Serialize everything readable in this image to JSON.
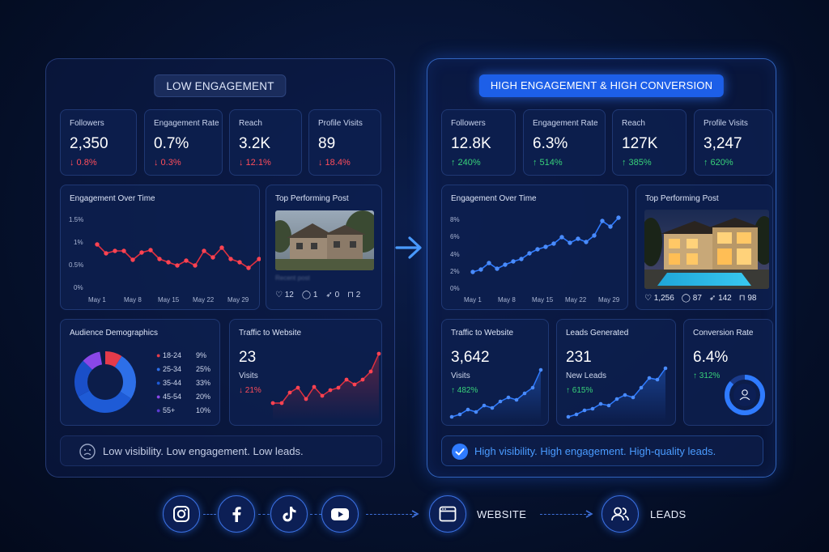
{
  "left": {
    "title": "LOW ENGAGEMENT",
    "stats": [
      {
        "label": "Followers",
        "value": "2,350",
        "change": "↓ 0.8%"
      },
      {
        "label": "Engagement Rate",
        "value": "0.7%",
        "change": "↓ 0.3%"
      },
      {
        "label": "Reach",
        "value": "3.2K",
        "change": "↓ 12.1%"
      },
      {
        "label": "Profile Visits",
        "value": "89",
        "change": "↓ 18.4%"
      }
    ],
    "engagement": {
      "title": "Engagement Over Time",
      "y_ticks": [
        "1.5%",
        "1%",
        "0.5%",
        "0%"
      ],
      "x_ticks": [
        "May 1",
        "May 8",
        "May 15",
        "May 22",
        "May 29"
      ]
    },
    "top_post": {
      "title": "Top Performing Post",
      "caption": "Recent post",
      "likes": "12",
      "comments": "1",
      "shares": "0",
      "saves": "2"
    },
    "demographics": {
      "title": "Audience Demographics",
      "rows": [
        {
          "label": "18-24",
          "pct": "9%",
          "color": "#e53b4a"
        },
        {
          "label": "25-34",
          "pct": "25%",
          "color": "#2d6fe8"
        },
        {
          "label": "35-44",
          "pct": "33%",
          "color": "#1e5bd6"
        },
        {
          "label": "45-54",
          "pct": "20%",
          "color": "#8a47e8"
        },
        {
          "label": "55+",
          "pct": "10%",
          "color": "#5b3bd0"
        }
      ]
    },
    "traffic": {
      "title": "Traffic to Website",
      "value": "23",
      "sub": "Visits",
      "change": "↓ 21%"
    },
    "footer": "Low visibility. Low engagement. Low leads."
  },
  "right": {
    "title": "HIGH ENGAGEMENT & HIGH CONVERSION",
    "stats": [
      {
        "label": "Followers",
        "value": "12.8K",
        "change": "↑ 240%"
      },
      {
        "label": "Engagement Rate",
        "value": "6.3%",
        "change": "↑ 514%"
      },
      {
        "label": "Reach",
        "value": "127K",
        "change": "↑ 385%"
      },
      {
        "label": "Profile Visits",
        "value": "3,247",
        "change": "↑ 620%"
      }
    ],
    "engagement": {
      "title": "Engagement Over Time",
      "y_ticks": [
        "8%",
        "6%",
        "4%",
        "2%",
        "0%"
      ],
      "x_ticks": [
        "May 1",
        "May 8",
        "May 15",
        "May 22",
        "May 29"
      ]
    },
    "top_post": {
      "title": "Top Performing Post",
      "likes": "1,256",
      "comments": "87",
      "shares": "142",
      "saves": "98"
    },
    "traffic": {
      "title": "Traffic to Website",
      "value": "3,642",
      "sub": "Visits",
      "change": "↑ 482%"
    },
    "leads": {
      "title": "Leads Generated",
      "value": "231",
      "sub": "New Leads",
      "change": "↑ 615%"
    },
    "conversion": {
      "title": "Conversion Rate",
      "value": "6.4%",
      "change": "↑ 312%"
    },
    "footer": "High visibility. High engagement. High-quality leads."
  },
  "flow": {
    "icons": [
      "instagram-icon",
      "facebook-icon",
      "tiktok-icon",
      "youtube-icon",
      "browser-window-icon",
      "users-icon"
    ],
    "website_label": "WEBSITE",
    "leads_label": "LEADS"
  },
  "colors": {
    "down": "#ff4d5b",
    "up": "#38d27a",
    "accent": "#1d5fe8",
    "low_line": "#e0303f",
    "high_line": "#2f7bff"
  }
}
